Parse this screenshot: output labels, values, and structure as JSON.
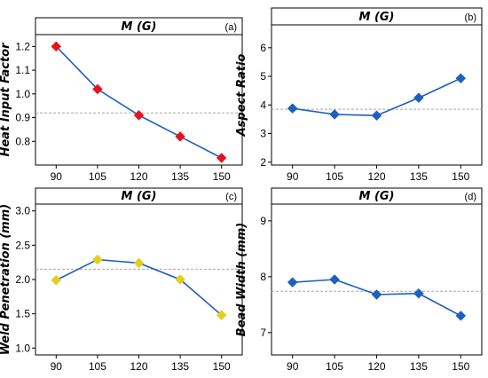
{
  "chart_data": [
    {
      "type": "line",
      "panel_tag": "(a)",
      "title": "M (G)",
      "ylabel": "Heat Input Factor",
      "categories": [
        "90",
        "105",
        "120",
        "135",
        "150"
      ],
      "values": [
        1.2,
        1.02,
        0.91,
        0.82,
        0.73
      ],
      "ylim": [
        0.7,
        1.25
      ],
      "yticks": [
        0.8,
        0.9,
        1.0,
        1.1,
        1.2
      ],
      "ytick_labels": [
        "0.8",
        "0.9",
        "1.0",
        "1.1",
        "1.2"
      ],
      "reference_line": 0.92,
      "marker": "diamond",
      "marker_color": "#e8121a",
      "line_color": "#1f5fbf"
    },
    {
      "type": "line",
      "panel_tag": "(b)",
      "title": "M (G)",
      "ylabel": "Aspect Ratio",
      "categories": [
        "90",
        "105",
        "120",
        "135",
        "150"
      ],
      "values": [
        3.88,
        3.67,
        3.63,
        4.25,
        4.93
      ],
      "ylim": [
        1.9,
        6.8
      ],
      "yticks": [
        2,
        3,
        4,
        5,
        6
      ],
      "ytick_labels": [
        "2",
        "3",
        "4",
        "5",
        "6"
      ],
      "reference_line": 3.85,
      "marker": "diamond",
      "marker_color": "#1f5fbf",
      "line_color": "#1f5fbf"
    },
    {
      "type": "line",
      "panel_tag": "(c)",
      "title": "M (G)",
      "ylabel": "Weld Penetration (mm)",
      "categories": [
        "90",
        "105",
        "120",
        "135",
        "150"
      ],
      "values": [
        1.99,
        2.29,
        2.24,
        2.0,
        1.48
      ],
      "ylim": [
        0.9,
        3.1
      ],
      "yticks": [
        1.0,
        1.5,
        2.0,
        2.5,
        3.0
      ],
      "ytick_labels": [
        "1.0",
        "1.5",
        "2.0",
        "2.5",
        "3.0"
      ],
      "reference_line": 2.15,
      "marker": "diamond",
      "marker_color": "#e1cf1c",
      "line_color": "#1f5fbf"
    },
    {
      "type": "line",
      "panel_tag": "(d)",
      "title": "M (G)",
      "ylabel": "Bead Width (mm)",
      "categories": [
        "90",
        "105",
        "120",
        "135",
        "150"
      ],
      "values": [
        7.9,
        7.95,
        7.68,
        7.7,
        7.3
      ],
      "ylim": [
        6.6,
        9.3
      ],
      "yticks": [
        7,
        8,
        9
      ],
      "ytick_labels": [
        "7",
        "8",
        "9"
      ],
      "reference_line": 7.74,
      "marker": "diamond",
      "marker_color": "#1f5fbf",
      "line_color": "#1f5fbf"
    }
  ]
}
